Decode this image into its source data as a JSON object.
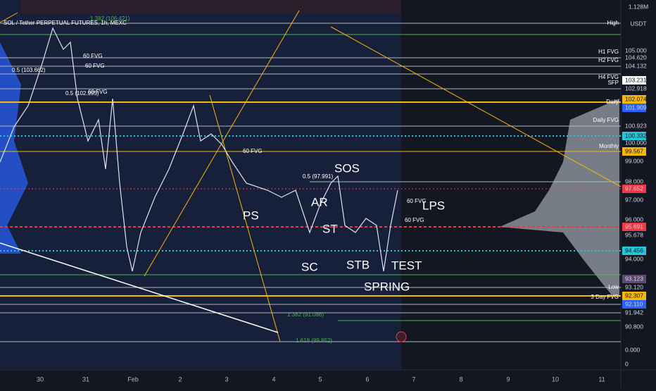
{
  "header": {
    "symbol": "SOL / Tether PERPETUAL FUTURES, 1h, MEXC",
    "currency": "USDT",
    "volume": "1.128M"
  },
  "price_axis": [
    "105.000",
    "104.620",
    "104.132",
    "103.231",
    "102.918",
    "102.074",
    "101.909",
    "100.923",
    "100.332",
    "100.000",
    "99.567",
    "99.000",
    "98.000",
    "97.652",
    "97.000",
    "96.000",
    "95.691",
    "95.678",
    "94.456",
    "94.000",
    "93.123",
    "93.120",
    "92.307",
    "92.110",
    "91.942",
    "90.800"
  ],
  "volume_axis": [
    "0.000",
    "0"
  ],
  "time_axis": [
    "30",
    "31",
    "Feb",
    "2",
    "3",
    "4",
    "5",
    "6",
    "7",
    "8",
    "9",
    "10",
    "11"
  ],
  "level_labels": [
    "High",
    "H1 FVG",
    "H2 FVG",
    "H4 FVG",
    "SFP",
    "Daily",
    "Daily FVG",
    "Monthly",
    "Low",
    "3 Day FVG"
  ],
  "wyckoff": [
    "SOS",
    "AR",
    "PS",
    "ST",
    "SC",
    "STB",
    "TEST",
    "SPRING",
    "LPS"
  ],
  "fvg": [
    "60 FVG",
    "60 FVG",
    "60 FVG",
    "60 FVG",
    "60 FVG",
    "60 FVG"
  ],
  "fib": [
    "1.382 (106.421)",
    "0.5 (103.662)",
    "0.5 (102.995)",
    "0.5 (97.991)",
    "1.382 (91.086)",
    "1.618 (89.852)"
  ]
}
